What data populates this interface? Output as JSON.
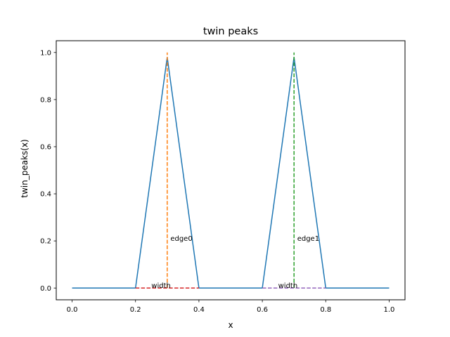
{
  "chart_data": {
    "type": "line",
    "title": "twin peaks",
    "xlabel": "x",
    "ylabel": "twin_peaks(x)",
    "xlim": [
      -0.05,
      1.05
    ],
    "ylim": [
      -0.05,
      1.05
    ],
    "xticks": [
      "0.0",
      "0.2",
      "0.4",
      "0.6",
      "0.8",
      "1.0"
    ],
    "yticks": [
      "0.0",
      "0.2",
      "0.4",
      "0.6",
      "0.8",
      "1.0"
    ],
    "grid": false,
    "series": [
      {
        "name": "",
        "color": "#1f77b4",
        "style": "solid",
        "x": [
          0.0,
          0.2,
          0.3,
          0.4,
          0.6,
          0.7,
          0.8,
          1.0
        ],
        "y": [
          0.0,
          0.0,
          0.98,
          0.0,
          0.0,
          0.98,
          0.0,
          0.0
        ]
      },
      {
        "name": "",
        "color": "#ff7f0e",
        "style": "dashed",
        "x": [
          0.3,
          0.3
        ],
        "y": [
          0.0,
          1.0
        ]
      },
      {
        "name": "",
        "color": "#2ca02c",
        "style": "dashed",
        "x": [
          0.7,
          0.7
        ],
        "y": [
          0.0,
          1.0
        ]
      },
      {
        "name": "",
        "color": "#d62728",
        "style": "dashed",
        "x": [
          0.2,
          0.4
        ],
        "y": [
          0.0,
          0.0
        ]
      },
      {
        "name": "",
        "color": "#9467bd",
        "style": "dashed",
        "x": [
          0.6,
          0.8
        ],
        "y": [
          0.0,
          0.0
        ]
      }
    ],
    "annotations": [
      {
        "text": "edge0",
        "x": 0.31,
        "y": 0.2
      },
      {
        "text": "edge1",
        "x": 0.71,
        "y": 0.2
      },
      {
        "text": "width",
        "x": 0.25,
        "y": 0.0
      },
      {
        "text": "width",
        "x": 0.65,
        "y": 0.0
      }
    ]
  }
}
